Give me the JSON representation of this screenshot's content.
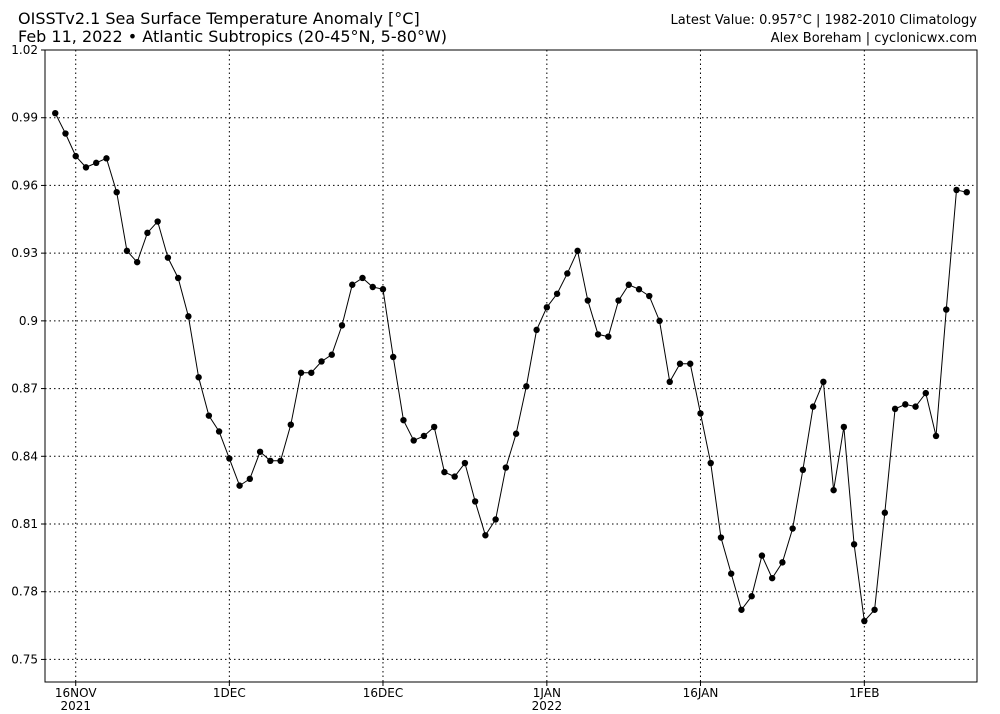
{
  "chart_data": {
    "type": "line",
    "title": "OISSTv2.1 Sea Surface Temperature Anomaly [°C]",
    "subtitle": "Feb 11, 2022 • Atlantic Subtropics (20-45°N, 5-80°W)",
    "annotation": "Latest Value: 0.957°C | 1982-2010 Climatology",
    "credit": "Alex Boreham | cyclonicwx.com",
    "x": [
      "2021-11-14",
      "2021-11-15",
      "2021-11-16",
      "2021-11-17",
      "2021-11-18",
      "2021-11-19",
      "2021-11-20",
      "2021-11-21",
      "2021-11-22",
      "2021-11-23",
      "2021-11-24",
      "2021-11-25",
      "2021-11-26",
      "2021-11-27",
      "2021-11-28",
      "2021-11-29",
      "2021-11-30",
      "2021-12-01",
      "2021-12-02",
      "2021-12-03",
      "2021-12-04",
      "2021-12-05",
      "2021-12-06",
      "2021-12-07",
      "2021-12-08",
      "2021-12-09",
      "2021-12-10",
      "2021-12-11",
      "2021-12-12",
      "2021-12-13",
      "2021-12-14",
      "2021-12-15",
      "2021-12-16",
      "2021-12-17",
      "2021-12-18",
      "2021-12-19",
      "2021-12-20",
      "2021-12-21",
      "2021-12-22",
      "2021-12-23",
      "2021-12-24",
      "2021-12-25",
      "2021-12-26",
      "2021-12-27",
      "2021-12-28",
      "2021-12-29",
      "2021-12-30",
      "2021-12-31",
      "2022-01-01",
      "2022-01-02",
      "2022-01-03",
      "2022-01-04",
      "2022-01-05",
      "2022-01-06",
      "2022-01-07",
      "2022-01-08",
      "2022-01-09",
      "2022-01-10",
      "2022-01-11",
      "2022-01-12",
      "2022-01-13",
      "2022-01-14",
      "2022-01-15",
      "2022-01-16",
      "2022-01-17",
      "2022-01-18",
      "2022-01-19",
      "2022-01-20",
      "2022-01-21",
      "2022-01-22",
      "2022-01-23",
      "2022-01-24",
      "2022-01-25",
      "2022-01-26",
      "2022-01-27",
      "2022-01-28",
      "2022-01-29",
      "2022-01-30",
      "2022-01-31",
      "2022-02-01",
      "2022-02-02",
      "2022-02-03",
      "2022-02-04",
      "2022-02-05",
      "2022-02-06",
      "2022-02-07",
      "2022-02-08",
      "2022-02-09",
      "2022-02-10",
      "2022-02-11"
    ],
    "series": [
      {
        "name": "SST anomaly",
        "color": "#000000",
        "values": [
          0.992,
          0.983,
          0.973,
          0.968,
          0.97,
          0.972,
          0.957,
          0.931,
          0.926,
          0.939,
          0.944,
          0.928,
          0.919,
          0.902,
          0.875,
          0.858,
          0.851,
          0.839,
          0.827,
          0.83,
          0.842,
          0.838,
          0.838,
          0.854,
          0.877,
          0.877,
          0.882,
          0.885,
          0.898,
          0.916,
          0.919,
          0.915,
          0.914,
          0.884,
          0.856,
          0.847,
          0.849,
          0.853,
          0.833,
          0.831,
          0.837,
          0.82,
          0.805,
          0.812,
          0.835,
          0.85,
          0.871,
          0.896,
          0.906,
          0.912,
          0.921,
          0.931,
          0.909,
          0.894,
          0.893,
          0.909,
          0.916,
          0.914,
          0.911,
          0.9,
          0.873,
          0.881,
          0.881,
          0.859,
          0.837,
          0.804,
          0.788,
          0.772,
          0.778,
          0.796,
          0.786,
          0.793,
          0.808,
          0.834,
          0.862,
          0.873,
          0.825,
          0.853,
          0.801,
          0.767,
          0.772,
          0.815,
          0.861,
          0.863,
          0.862,
          0.868,
          0.849,
          0.905,
          0.958,
          0.957
        ]
      }
    ],
    "xlim": [
      "2021-11-13",
      "2022-02-12"
    ],
    "xticks": [
      {
        "value": "2021-11-16",
        "label": "16NOV",
        "sublabel": "2021"
      },
      {
        "value": "2021-12-01",
        "label": "1DEC"
      },
      {
        "value": "2021-12-16",
        "label": "16DEC"
      },
      {
        "value": "2022-01-01",
        "label": "1JAN",
        "sublabel": "2022"
      },
      {
        "value": "2022-01-16",
        "label": "16JAN"
      },
      {
        "value": "2022-02-01",
        "label": "1FEB"
      }
    ],
    "ylim": [
      0.74,
      1.02
    ],
    "yticks": [
      0.75,
      0.78,
      0.81,
      0.84,
      0.87,
      0.9,
      0.93,
      0.96,
      0.99,
      1.02
    ],
    "grid": true
  }
}
